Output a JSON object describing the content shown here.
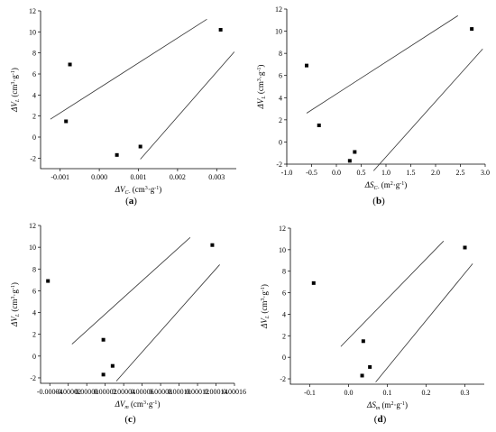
{
  "chart_data": [
    {
      "type": "scatter",
      "panel": "(a)",
      "xlabel": "ΔVC- (cm³·g⁻¹)",
      "xlabel_parts": [
        "ΔV",
        "C-",
        " (cm",
        "3",
        "·g",
        "-1",
        ")"
      ],
      "ylabel_parts": [
        "ΔV",
        "L",
        " (cm",
        "3",
        "·g",
        "-1",
        ")"
      ],
      "xlim": [
        -0.0015,
        0.0035
      ],
      "ylim": [
        -3,
        12
      ],
      "xticks": [
        -0.001,
        0.0,
        0.001,
        0.002,
        0.003
      ],
      "xtick_labels": [
        "-0.001",
        "0.000",
        "0.001",
        "0.002",
        "0.003"
      ],
      "yticks": [
        -2,
        0,
        2,
        4,
        6,
        8,
        10,
        12
      ],
      "points": [
        {
          "x": -0.00085,
          "y": 1.5
        },
        {
          "x": -0.00075,
          "y": 6.9
        },
        {
          "x": 0.00045,
          "y": -1.7
        },
        {
          "x": 0.00105,
          "y": -0.9
        },
        {
          "x": 0.0031,
          "y": 10.2
        }
      ],
      "bands": [
        {
          "x": [
            -0.00125,
            0.00275
          ],
          "y": [
            1.7,
            11.2
          ]
        },
        {
          "x": [
            0.00105,
            0.00345
          ],
          "y": [
            -2.1,
            8.1
          ]
        }
      ]
    },
    {
      "type": "scatter",
      "panel": "(b)",
      "xlabel_parts": [
        "ΔS",
        "C-",
        " (m",
        "2",
        "·g",
        "-1",
        ")"
      ],
      "ylabel_parts": [
        "ΔV",
        "L",
        " (cm",
        "3",
        "·g",
        "-1",
        ")"
      ],
      "xlim": [
        -1.0,
        3.0
      ],
      "ylim": [
        -2,
        12
      ],
      "xticks": [
        -1.0,
        -0.5,
        0.0,
        0.5,
        1.0,
        1.5,
        2.0,
        2.5,
        3.0
      ],
      "xtick_labels": [
        "-1.0",
        "-0.5",
        "0.0",
        "0.5",
        "1.0",
        "1.5",
        "2.0",
        "2.5",
        "3.0"
      ],
      "yticks": [
        -2,
        0,
        2,
        4,
        6,
        8,
        10,
        12
      ],
      "points": [
        {
          "x": -0.6,
          "y": 6.9
        },
        {
          "x": -0.35,
          "y": 1.5
        },
        {
          "x": 0.27,
          "y": -1.7
        },
        {
          "x": 0.37,
          "y": -0.9
        },
        {
          "x": 2.73,
          "y": 10.2
        }
      ],
      "bands": [
        {
          "x": [
            -0.6,
            2.45
          ],
          "y": [
            2.6,
            11.4
          ]
        },
        {
          "x": [
            0.75,
            2.95
          ],
          "y": [
            -2.6,
            8.4
          ]
        }
      ]
    },
    {
      "type": "scatter",
      "panel": "(c)",
      "xlabel_parts": [
        "ΔV",
        "m",
        " (cm",
        "3",
        "·g",
        "-1",
        ")"
      ],
      "ylabel_parts": [
        "ΔV",
        "L",
        " (cm",
        "3",
        "·g",
        "-1",
        ")"
      ],
      "xlim": [
        -5e-05,
        0.00016
      ],
      "ylim": [
        -2.5,
        12
      ],
      "xticks": [
        -4e-05,
        -2e-05,
        0.0,
        2e-05,
        4e-05,
        6e-05,
        8e-05,
        0.0001,
        0.00012,
        0.00014,
        0.00016
      ],
      "xtick_labels": [
        "-0.00004",
        "-0.00002",
        "0.00000",
        "0.00002",
        "0.00004",
        "0.00006",
        "0.00008",
        "0.00010",
        "0.00012",
        "0.00014",
        "0.00016"
      ],
      "yticks": [
        -2,
        0,
        2,
        4,
        6,
        8,
        10,
        12
      ],
      "points": [
        {
          "x": -4.2e-05,
          "y": 6.9
        },
        {
          "x": 1.8e-05,
          "y": 1.5
        },
        {
          "x": 1.8e-05,
          "y": -1.7
        },
        {
          "x": 2.8e-05,
          "y": -0.9
        },
        {
          "x": 0.000136,
          "y": 10.2
        }
      ],
      "bands": [
        {
          "x": [
            -1.6e-05,
            0.000112
          ],
          "y": [
            1.1,
            10.9
          ]
        },
        {
          "x": [
            3.2e-05,
            0.000144
          ],
          "y": [
            -2.3,
            8.4
          ]
        }
      ]
    },
    {
      "type": "scatter",
      "panel": "(d)",
      "xlabel_parts": [
        "ΔS",
        "m",
        " (m",
        "2",
        "·g",
        "-1",
        ")"
      ],
      "ylabel_parts": [
        "ΔV",
        "L",
        " (cm",
        "3",
        "·g",
        "-1",
        ")"
      ],
      "xlim": [
        -0.15,
        0.35
      ],
      "ylim": [
        -2.5,
        12
      ],
      "xticks": [
        -0.1,
        0.0,
        0.1,
        0.2,
        0.3
      ],
      "xtick_labels": [
        "-0.1",
        "0.0",
        "0.1",
        "0.2",
        "0.3"
      ],
      "yticks": [
        -2,
        0,
        2,
        4,
        6,
        8,
        10,
        12
      ],
      "points": [
        {
          "x": -0.09,
          "y": 6.9
        },
        {
          "x": 0.038,
          "y": 1.5
        },
        {
          "x": 0.035,
          "y": -1.7
        },
        {
          "x": 0.055,
          "y": -0.9
        },
        {
          "x": 0.3,
          "y": 10.2
        }
      ],
      "bands": [
        {
          "x": [
            -0.02,
            0.245
          ],
          "y": [
            1.0,
            10.8
          ]
        },
        {
          "x": [
            0.07,
            0.32
          ],
          "y": [
            -2.3,
            8.7
          ]
        }
      ]
    }
  ]
}
